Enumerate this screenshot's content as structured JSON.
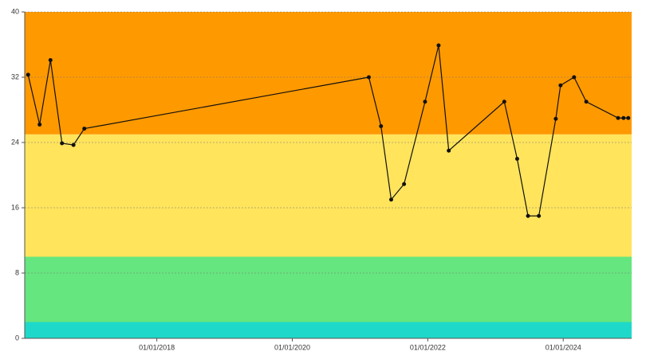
{
  "chart_data": {
    "type": "line",
    "x": [
      2016.1,
      2016.27,
      2016.43,
      2016.6,
      2016.77,
      2016.93,
      2021.13,
      2021.31,
      2021.46,
      2021.65,
      2021.96,
      2022.16,
      2022.31,
      2023.13,
      2023.32,
      2023.48,
      2023.64,
      2023.89,
      2023.96,
      2024.16,
      2024.34,
      2024.81,
      2024.89,
      2024.96
    ],
    "values": [
      32.3,
      26.2,
      34.1,
      23.9,
      23.7,
      25.7,
      32.0,
      26.0,
      17.0,
      18.9,
      29.0,
      35.9,
      23.0,
      29.0,
      22.0,
      15.0,
      15.0,
      26.9,
      31.0,
      32.0,
      29.0,
      27.0,
      27.0,
      27.0
    ],
    "color": "#111111",
    "bands": [
      {
        "from": 0,
        "to": 2,
        "color": "#1ed9c9"
      },
      {
        "from": 2,
        "to": 10,
        "color": "#66e67e"
      },
      {
        "from": 10,
        "to": 25,
        "color": "#ffe45c"
      },
      {
        "from": 25,
        "to": 40,
        "color": "#ff9900"
      }
    ],
    "xlim": [
      2016.05,
      2025.01
    ],
    "xticks": [
      {
        "value": 2018,
        "label": "01/01/2018"
      },
      {
        "value": 2020,
        "label": "01/01/2020"
      },
      {
        "value": 2022,
        "label": "01/01/2022"
      },
      {
        "value": 2024,
        "label": "01/01/2024"
      }
    ],
    "ylim": [
      0,
      40
    ],
    "yticks": [
      0,
      8,
      16,
      24,
      32,
      40
    ],
    "grid": true
  }
}
